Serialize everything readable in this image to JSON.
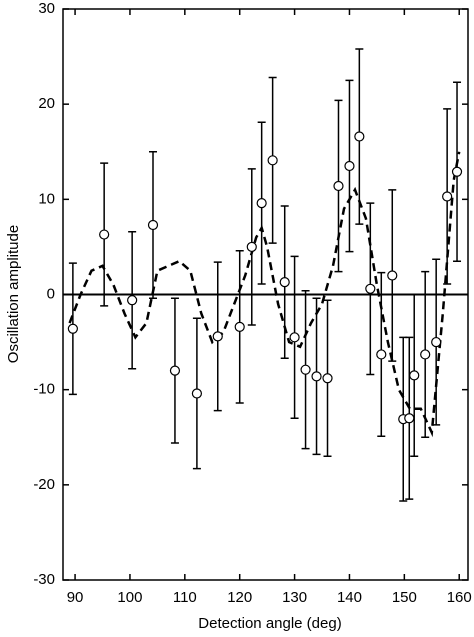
{
  "chart_data": {
    "type": "scatter",
    "xlabel": "Detection angle (deg)",
    "ylabel": "Oscillation amplitude",
    "xlim": [
      87.8,
      161.6
    ],
    "ylim": [
      -30,
      30
    ],
    "xticks": [
      90,
      100,
      110,
      120,
      130,
      140,
      150,
      160
    ],
    "yticks": [
      -30,
      -20,
      -10,
      0,
      10,
      20,
      30
    ],
    "reference_line": 0,
    "color": "#000000",
    "series": [
      {
        "x": [
          89.6,
          95.3,
          100.4,
          104.2,
          108.2,
          112.2,
          116,
          120,
          122.2,
          124,
          126,
          128.2,
          130,
          132,
          134,
          136,
          138,
          140,
          141.8,
          143.8,
          145.8,
          147.8,
          149.8,
          150.9,
          151.8,
          153.8,
          155.8,
          157.8,
          159.6
        ],
        "values": [
          -3.6,
          6.3,
          -0.6,
          7.3,
          -8,
          -10.4,
          -4.4,
          -3.4,
          5,
          9.6,
          14.1,
          1.3,
          -4.5,
          -7.9,
          -8.6,
          -8.8,
          11.4,
          13.5,
          16.6,
          0.6,
          -6.3,
          2,
          -13.1,
          -13,
          -8.5,
          -6.3,
          -5,
          10.3,
          12.9
        ],
        "errors": [
          6.9,
          7.5,
          7.2,
          7.7,
          7.6,
          7.9,
          7.8,
          8,
          8.2,
          8.5,
          8.7,
          8,
          8.5,
          8.3,
          8.2,
          8.2,
          9,
          9,
          9.2,
          9,
          8.6,
          9,
          8.6,
          8.5,
          8.5,
          8.7,
          8.7,
          9.2,
          9.4
        ]
      }
    ],
    "fit": {
      "x": [
        89,
        91,
        93,
        95,
        97,
        99,
        101,
        103,
        105,
        107,
        109,
        111,
        113,
        115,
        117,
        119,
        121,
        123,
        124,
        125,
        127,
        129,
        131,
        133,
        135,
        137,
        139,
        141,
        143,
        145,
        147,
        149,
        151,
        153,
        155,
        157,
        159,
        160
      ],
      "values": [
        -3,
        0,
        2.5,
        3,
        1,
        -2,
        -4.5,
        -3,
        2.5,
        3,
        3.5,
        2.5,
        -2,
        -5,
        -4,
        -1,
        2,
        6,
        7,
        5,
        -1,
        -5,
        -5.5,
        -3,
        -1,
        3,
        9,
        11,
        8,
        1,
        -5,
        -10,
        -12,
        -12,
        -14.5,
        -2,
        12,
        15
      ]
    }
  }
}
